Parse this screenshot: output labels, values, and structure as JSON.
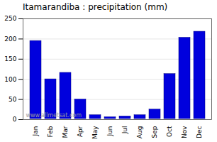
{
  "chart_data": {
    "type": "bar",
    "title": "Itamarandiba : precipitation (mm)",
    "categories": [
      "Jan",
      "Feb",
      "Mar",
      "Apr",
      "May",
      "Jun",
      "Jul",
      "Aug",
      "Sep",
      "Oct",
      "Nov",
      "Dec"
    ],
    "values": [
      197,
      102,
      118,
      52,
      13,
      8,
      10,
      13,
      27,
      115,
      205,
      220
    ],
    "color": "#0000dd",
    "ylim": [
      0,
      250
    ],
    "yticks": [
      0,
      50,
      100,
      150,
      200,
      250
    ],
    "grid": true,
    "annotations": [
      "www.allmetsat.com"
    ]
  }
}
